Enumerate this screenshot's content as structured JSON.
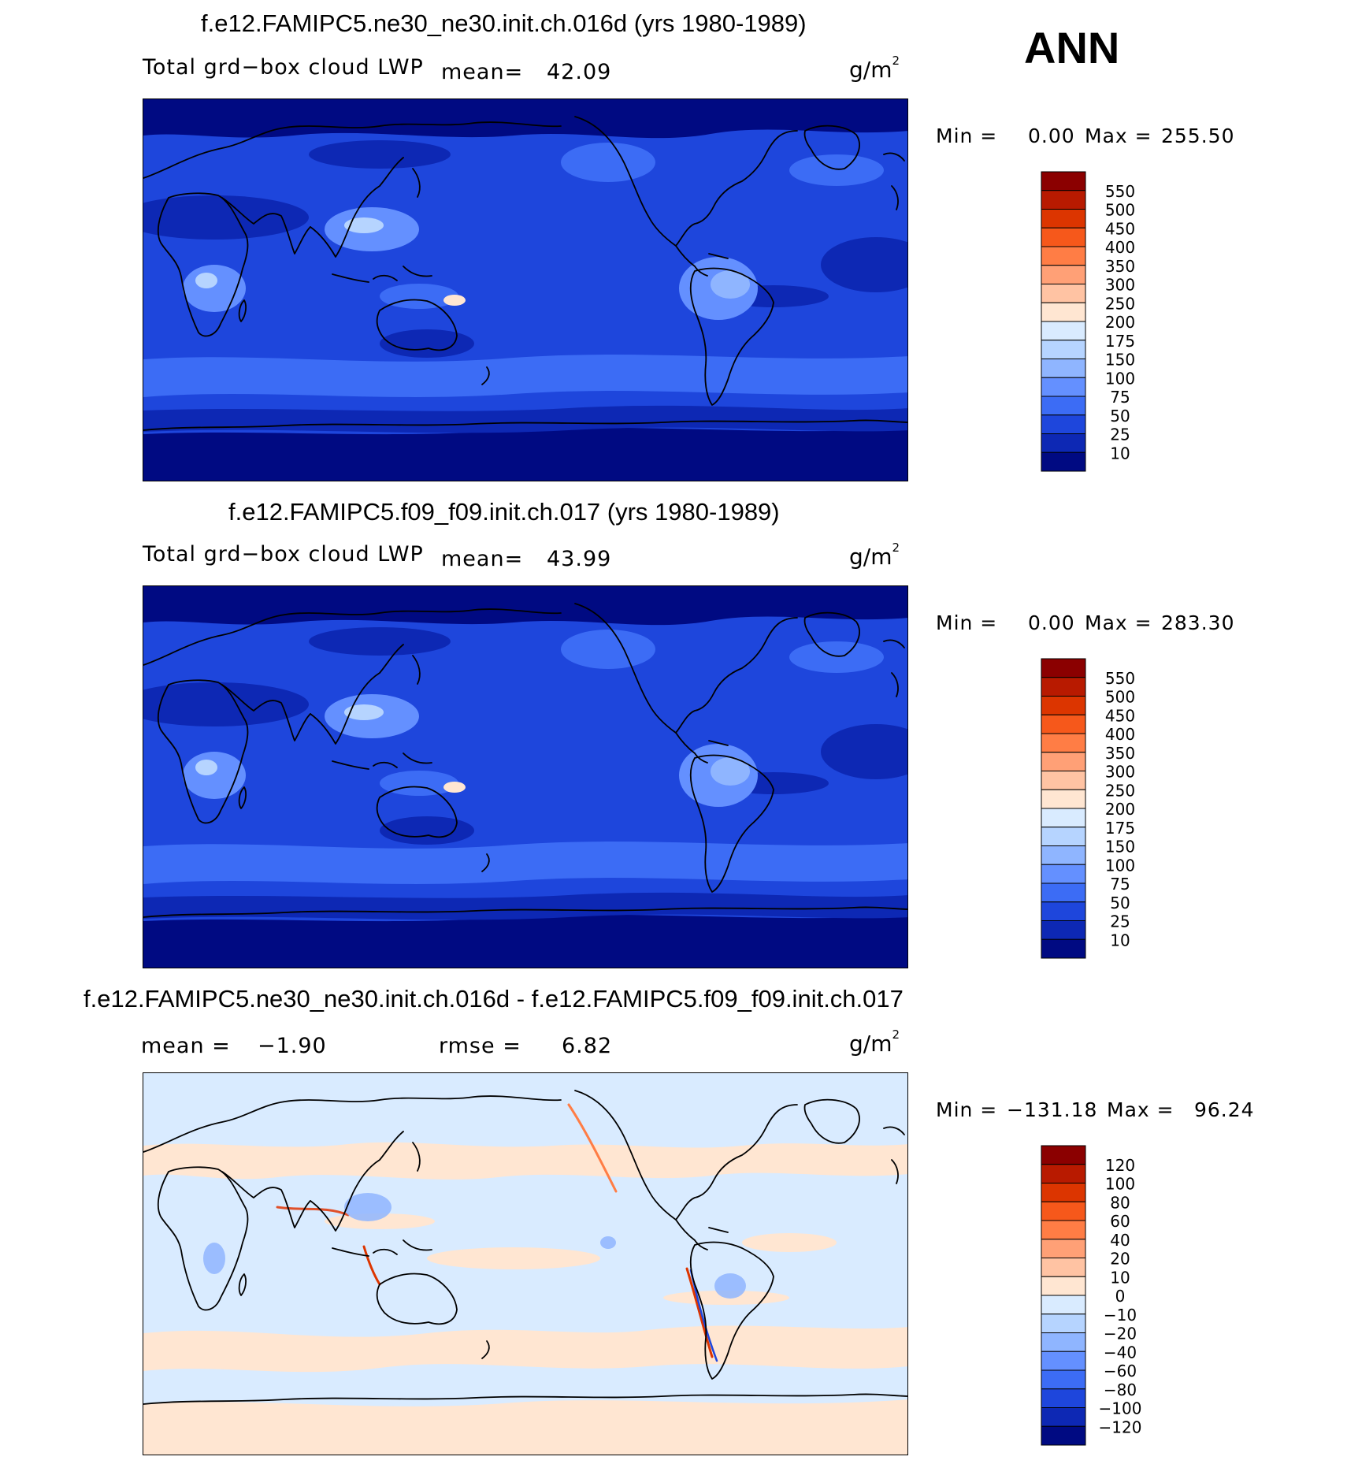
{
  "season": "ANN",
  "units_base": "g/m",
  "units_exp": "2",
  "panels": [
    {
      "title": "f.e12.FAMIPC5.ne30_ne30.init.ch.016d (yrs 1980-1989)",
      "variable": "Total grd−box cloud LWP",
      "mean_label": "mean=",
      "mean_value": "42.09",
      "min_label": "Min =",
      "min_value": "0.00",
      "max_label": "Max =",
      "max_value": "255.50",
      "colorbar": {
        "labels": [
          "550",
          "500",
          "450",
          "400",
          "350",
          "300",
          "250",
          "200",
          "175",
          "150",
          "100",
          "75",
          "50",
          "25",
          "10"
        ],
        "colors": [
          "#8b0000",
          "#b81a00",
          "#dc3500",
          "#f6581b",
          "#ff7d45",
          "#ffa076",
          "#ffc3a3",
          "#ffe6d2",
          "#d9ebff",
          "#b6d4ff",
          "#8fb5ff",
          "#6490ff",
          "#3c6cf5",
          "#1e46dc",
          "#0d28b4",
          "#000a82"
        ]
      }
    },
    {
      "title": "f.e12.FAMIPC5.f09_f09.init.ch.017 (yrs 1980-1989)",
      "variable": "Total grd−box cloud LWP",
      "mean_label": "mean=",
      "mean_value": "43.99",
      "min_label": "Min =",
      "min_value": "0.00",
      "max_label": "Max =",
      "max_value": "283.30",
      "colorbar": {
        "labels": [
          "550",
          "500",
          "450",
          "400",
          "350",
          "300",
          "250",
          "200",
          "175",
          "150",
          "100",
          "75",
          "50",
          "25",
          "10"
        ],
        "colors": [
          "#8b0000",
          "#b81a00",
          "#dc3500",
          "#f6581b",
          "#ff7d45",
          "#ffa076",
          "#ffc3a3",
          "#ffe6d2",
          "#d9ebff",
          "#b6d4ff",
          "#8fb5ff",
          "#6490ff",
          "#3c6cf5",
          "#1e46dc",
          "#0d28b4",
          "#000a82"
        ]
      }
    },
    {
      "title": "f.e12.FAMIPC5.ne30_ne30.init.ch.016d - f.e12.FAMIPC5.f09_f09.init.ch.017",
      "mean_label": "mean =",
      "mean_value": "−1.90",
      "rmse_label": "rmse =",
      "rmse_value": "6.82",
      "min_label": "Min =",
      "min_value": "−131.18",
      "max_label": "Max =",
      "max_value": "96.24",
      "colorbar": {
        "labels": [
          "120",
          "100",
          "80",
          "60",
          "40",
          "20",
          "10",
          "0",
          "−10",
          "−20",
          "−40",
          "−60",
          "−80",
          "−100",
          "−120"
        ],
        "colors": [
          "#8b0000",
          "#b81a00",
          "#dc3500",
          "#f6581b",
          "#ff7d45",
          "#ffa076",
          "#ffc3a3",
          "#ffe6d2",
          "#d9ebff",
          "#b6d4ff",
          "#8fb5ff",
          "#6490ff",
          "#3c6cf5",
          "#1e46dc",
          "#0d28b4",
          "#000a82"
        ]
      }
    }
  ]
}
